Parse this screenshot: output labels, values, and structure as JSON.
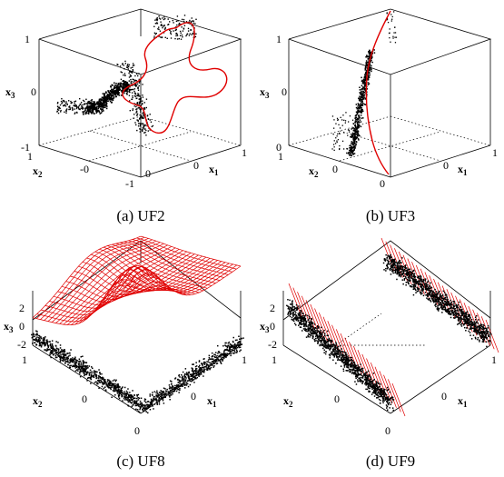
{
  "figure": {
    "panels": [
      {
        "id": "a",
        "caption": "(a) UF2",
        "labels": {
          "x3_ticks": [
            "1",
            "0",
            "-1"
          ],
          "x2_ticks": [
            "1",
            "-0"
          ],
          "x1_ticks": [
            "-1",
            "0",
            "0",
            "1"
          ],
          "axis_x3": "x3",
          "axis_x2": "x2",
          "axis_x1": "x1"
        }
      },
      {
        "id": "b",
        "caption": "(b) UF3",
        "labels": {
          "x3_ticks": [
            "1",
            "0",
            "0"
          ],
          "x2_ticks": [
            "1",
            "0"
          ],
          "x1_ticks": [
            "0",
            "0",
            "1"
          ],
          "axis_x3": "x3",
          "axis_x2": "x2",
          "axis_x1": "x1"
        }
      },
      {
        "id": "c",
        "caption": "(c) UF8",
        "labels": {
          "x3_ticks": [
            "2",
            "0",
            "-2"
          ],
          "x2_ticks": [
            "1",
            "0"
          ],
          "x1_ticks": [
            "0",
            "0",
            "1"
          ],
          "axis_x3": "x3",
          "axis_x2": "x2",
          "axis_x1": "x1"
        }
      },
      {
        "id": "d",
        "caption": "(d) UF9",
        "labels": {
          "x3_ticks": [
            "2",
            "0",
            "-2"
          ],
          "x2_ticks": [
            "1",
            "0"
          ],
          "x1_ticks": [
            "0",
            "0",
            "1"
          ],
          "axis_x3": "x3",
          "axis_x2": "x2",
          "axis_x1": "x1"
        }
      }
    ]
  },
  "colors": {
    "points": "#000000",
    "pareto_front": "#e00000",
    "box": "#000000",
    "background": "#ffffff"
  },
  "chart_data": [
    {
      "type": "scatter",
      "title": "(a) UF2",
      "projection": "3d",
      "xlabel": "x1",
      "ylabel": "x2",
      "zlabel": "x3",
      "xlim": [
        -1,
        1
      ],
      "ylim": [
        -1,
        1
      ],
      "zlim": [
        -1,
        1
      ],
      "series": [
        {
          "kind": "points",
          "clusters": [
            {
              "x1": -0.3,
              "x2": -0.7,
              "x3": -0.15,
              "spread": 0.18,
              "count": 420
            },
            {
              "x1": 0.05,
              "x2": 0.1,
              "x3": -0.1,
              "spread": 0.22,
              "count": 300
            },
            {
              "x1": 0.45,
              "x2": 0.5,
              "x3": 0.7,
              "spread": 0.12,
              "count": 140
            }
          ]
        },
        {
          "kind": "curve",
          "description_values": "closed loop through x3 from -1 to 1"
        }
      ]
    },
    {
      "type": "scatter",
      "title": "(b) UF3",
      "projection": "3d",
      "xlabel": "x1",
      "ylabel": "x2",
      "zlabel": "x3",
      "xlim": [
        0,
        1
      ],
      "ylim": [
        0,
        1
      ],
      "zlim": [
        0,
        1
      ],
      "series": [
        {
          "kind": "points",
          "clusters": [
            {
              "x1": 0.1,
              "x2": 0.1,
              "x3": 0.45,
              "spread": 0.25,
              "count": 500
            }
          ]
        },
        {
          "kind": "curve"
        }
      ]
    },
    {
      "type": "scatter",
      "title": "(c) UF8",
      "projection": "3d",
      "xlabel": "x1",
      "ylabel": "x2",
      "zlabel": "x3",
      "xlim": [
        0,
        1
      ],
      "ylim": [
        0,
        1
      ],
      "zlim": [
        -2,
        2
      ],
      "series": [
        {
          "kind": "points",
          "count": 1800
        },
        {
          "kind": "surface_mesh"
        }
      ]
    },
    {
      "type": "scatter",
      "title": "(d) UF9",
      "projection": "3d",
      "xlabel": "x1",
      "ylabel": "x2",
      "zlabel": "x3",
      "xlim": [
        0,
        1
      ],
      "ylim": [
        0,
        1
      ],
      "zlim": [
        -2,
        2
      ],
      "series": [
        {
          "kind": "points",
          "count": 2200
        },
        {
          "kind": "surface_mesh"
        }
      ]
    }
  ]
}
